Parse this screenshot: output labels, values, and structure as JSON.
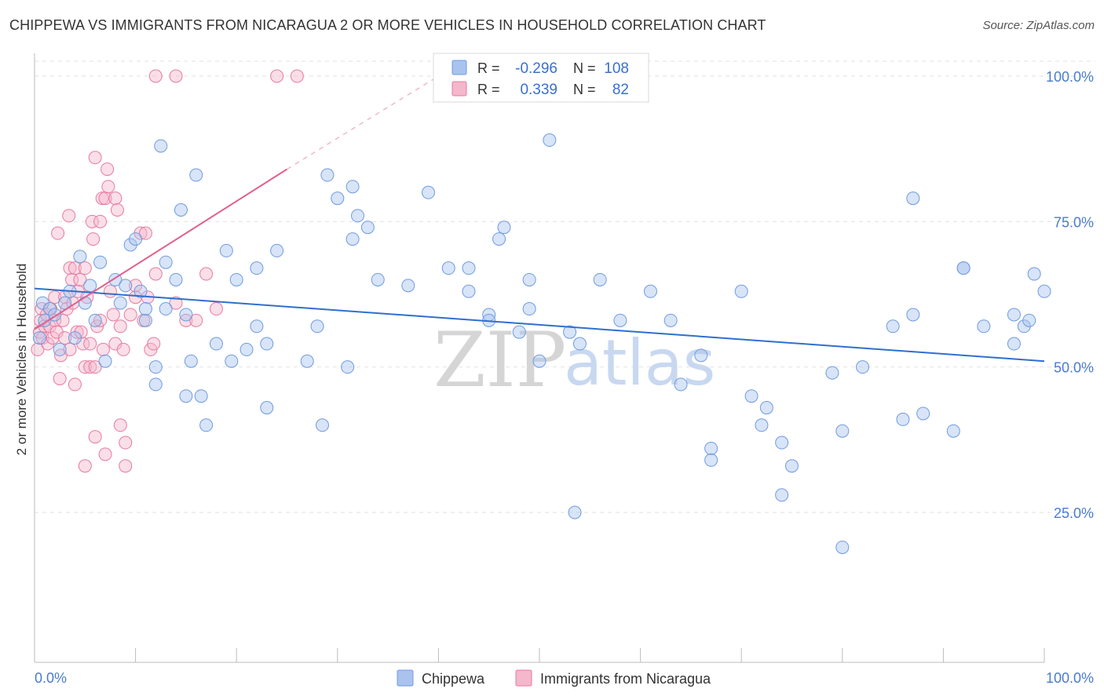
{
  "title": "CHIPPEWA VS IMMIGRANTS FROM NICARAGUA 2 OR MORE VEHICLES IN HOUSEHOLD CORRELATION CHART",
  "source": "Source: ZipAtlas.com",
  "colors": {
    "blue": "#6f9be0",
    "blue_fill": "#a9c3ee",
    "blue_line": "#2f6fcf",
    "pink": "#e87aa0",
    "pink_fill": "#f4b7cc",
    "pink_line": "#e0608f",
    "grid": "#dddddd",
    "axis_text": "#4a7bd0"
  },
  "legend_box": {
    "rows": [
      {
        "series": "Chippewa",
        "r_label": "R =",
        "r_value": "-0.296",
        "n_label": "N =",
        "n_value": "108"
      },
      {
        "series": "Immigrants from Nicaragua",
        "r_label": "R =",
        "r_value": "0.339",
        "n_label": "N =",
        "n_value": "82"
      }
    ]
  },
  "bottom_legend": [
    "Chippewa",
    "Immigrants from Nicaragua"
  ],
  "watermark": {
    "zip": "ZIP",
    "atlas": "atlas"
  },
  "chart_data": {
    "type": "scatter",
    "title": "CHIPPEWA VS IMMIGRANTS FROM NICARAGUA 2 OR MORE VEHICLES IN HOUSEHOLD CORRELATION CHART",
    "xlabel": "",
    "ylabel": "2 or more Vehicles in Household",
    "xlim": [
      0,
      100
    ],
    "ylim": [
      0,
      105
    ],
    "x_tick_labels": [
      "0.0%",
      "100.0%"
    ],
    "y_tick_labels": [
      "25.0%",
      "50.0%",
      "75.0%",
      "100.0%"
    ],
    "y_ticks": [
      25,
      50,
      75,
      100
    ],
    "series": [
      {
        "name": "Chippewa",
        "color": "blue",
        "points": [
          [
            0.5,
            55
          ],
          [
            0.8,
            61
          ],
          [
            1,
            58
          ],
          [
            1.5,
            60
          ],
          [
            2,
            59
          ],
          [
            2.5,
            53
          ],
          [
            3,
            61
          ],
          [
            3.5,
            63
          ],
          [
            4,
            55
          ],
          [
            4.5,
            69
          ],
          [
            5,
            61
          ],
          [
            5.5,
            64
          ],
          [
            6,
            58
          ],
          [
            6.5,
            68
          ],
          [
            7,
            51
          ],
          [
            8,
            65
          ],
          [
            8.5,
            61
          ],
          [
            9,
            64
          ],
          [
            9.5,
            71
          ],
          [
            10,
            72
          ],
          [
            10.5,
            63
          ],
          [
            11,
            58
          ],
          [
            11,
            60
          ],
          [
            12,
            50
          ],
          [
            12,
            47
          ],
          [
            12.5,
            88
          ],
          [
            13,
            60
          ],
          [
            13,
            68
          ],
          [
            14,
            65
          ],
          [
            14.5,
            77
          ],
          [
            15,
            59
          ],
          [
            15,
            45
          ],
          [
            15.5,
            51
          ],
          [
            16,
            83
          ],
          [
            16.5,
            45
          ],
          [
            17,
            40
          ],
          [
            18,
            54
          ],
          [
            19,
            70
          ],
          [
            19.5,
            51
          ],
          [
            20,
            65
          ],
          [
            21,
            53
          ],
          [
            22,
            57
          ],
          [
            22,
            67
          ],
          [
            23,
            43
          ],
          [
            23,
            54
          ],
          [
            24,
            70
          ],
          [
            27,
            51
          ],
          [
            28,
            57
          ],
          [
            28.5,
            40
          ],
          [
            29,
            83
          ],
          [
            30,
            79
          ],
          [
            31,
            50
          ],
          [
            31.5,
            81
          ],
          [
            31.5,
            72
          ],
          [
            32,
            76
          ],
          [
            33,
            74
          ],
          [
            34,
            65
          ],
          [
            37,
            64
          ],
          [
            39,
            80
          ],
          [
            41,
            67
          ],
          [
            43,
            63
          ],
          [
            43,
            67
          ],
          [
            45,
            59
          ],
          [
            45,
            58
          ],
          [
            46,
            72
          ],
          [
            46.5,
            74
          ],
          [
            48,
            56
          ],
          [
            49,
            60
          ],
          [
            49,
            65
          ],
          [
            50,
            51
          ],
          [
            51,
            89
          ],
          [
            53,
            56
          ],
          [
            53.5,
            25
          ],
          [
            54,
            54
          ],
          [
            56,
            65
          ],
          [
            58,
            58
          ],
          [
            61,
            63
          ],
          [
            63,
            58
          ],
          [
            64,
            47
          ],
          [
            66,
            52
          ],
          [
            67,
            36
          ],
          [
            67,
            34
          ],
          [
            70,
            63
          ],
          [
            71,
            45
          ],
          [
            72,
            40
          ],
          [
            72.5,
            43
          ],
          [
            74,
            37
          ],
          [
            74,
            28
          ],
          [
            75,
            33
          ],
          [
            79,
            49
          ],
          [
            80,
            39
          ],
          [
            80,
            19
          ],
          [
            82,
            50
          ],
          [
            85,
            57
          ],
          [
            86,
            41
          ],
          [
            87,
            79
          ],
          [
            87,
            59
          ],
          [
            88,
            42
          ],
          [
            91,
            39
          ],
          [
            92,
            67
          ],
          [
            92,
            67
          ],
          [
            94,
            57
          ],
          [
            97,
            54
          ],
          [
            97,
            59
          ],
          [
            98,
            57
          ],
          [
            98.5,
            58
          ],
          [
            99,
            66
          ],
          [
            100,
            63
          ]
        ],
        "trend": {
          "x0": 0,
          "y0": 63.5,
          "x1": 100,
          "y1": 51
        }
      },
      {
        "name": "Immigrants from Nicaragua",
        "color": "pink",
        "points": [
          [
            0.3,
            53
          ],
          [
            0.5,
            56
          ],
          [
            0.6,
            58
          ],
          [
            0.7,
            60
          ],
          [
            0.8,
            55
          ],
          [
            1,
            57
          ],
          [
            1.2,
            59
          ],
          [
            1.3,
            54
          ],
          [
            1.5,
            57
          ],
          [
            1.6,
            60
          ],
          [
            1.8,
            55
          ],
          [
            2,
            58
          ],
          [
            2,
            62
          ],
          [
            2.2,
            56
          ],
          [
            2.3,
            73
          ],
          [
            2.5,
            48
          ],
          [
            2.6,
            52
          ],
          [
            2.8,
            58
          ],
          [
            3,
            62
          ],
          [
            3,
            55
          ],
          [
            3.2,
            60
          ],
          [
            3.4,
            76
          ],
          [
            3.5,
            67
          ],
          [
            3.5,
            53
          ],
          [
            3.7,
            65
          ],
          [
            3.8,
            61
          ],
          [
            4,
            67
          ],
          [
            4,
            47
          ],
          [
            4.2,
            56
          ],
          [
            4.3,
            63
          ],
          [
            4.5,
            65
          ],
          [
            4.6,
            56
          ],
          [
            4.8,
            54
          ],
          [
            5,
            67
          ],
          [
            5,
            50
          ],
          [
            5,
            33
          ],
          [
            5.2,
            62
          ],
          [
            5.5,
            54
          ],
          [
            5.5,
            50
          ],
          [
            5.7,
            75
          ],
          [
            5.8,
            72
          ],
          [
            6,
            86
          ],
          [
            6,
            50
          ],
          [
            6,
            38
          ],
          [
            6.2,
            57
          ],
          [
            6.5,
            75
          ],
          [
            6.5,
            58
          ],
          [
            6.7,
            79
          ],
          [
            6.8,
            53
          ],
          [
            7,
            35
          ],
          [
            7,
            79
          ],
          [
            7.2,
            84
          ],
          [
            7.3,
            81
          ],
          [
            7.5,
            63
          ],
          [
            7.8,
            59
          ],
          [
            8,
            54
          ],
          [
            8,
            79
          ],
          [
            8.2,
            77
          ],
          [
            8.5,
            57
          ],
          [
            8.5,
            40
          ],
          [
            8.8,
            53
          ],
          [
            9,
            37
          ],
          [
            9,
            33
          ],
          [
            9.5,
            59
          ],
          [
            10,
            62
          ],
          [
            10,
            64
          ],
          [
            10.5,
            73
          ],
          [
            10.8,
            58
          ],
          [
            11,
            73
          ],
          [
            11.2,
            62
          ],
          [
            11.5,
            53
          ],
          [
            11.8,
            54
          ],
          [
            12,
            66
          ],
          [
            14,
            61
          ],
          [
            15,
            58
          ],
          [
            16,
            58
          ],
          [
            17,
            66
          ],
          [
            18,
            60
          ],
          [
            24,
            100
          ],
          [
            26,
            100
          ],
          [
            12,
            100
          ],
          [
            14,
            100
          ]
        ],
        "trend": {
          "x0": 0,
          "y0": 56.5,
          "x1": 25,
          "y1": 84,
          "dashed_to": {
            "x": 40,
            "y": 100
          }
        }
      }
    ]
  }
}
